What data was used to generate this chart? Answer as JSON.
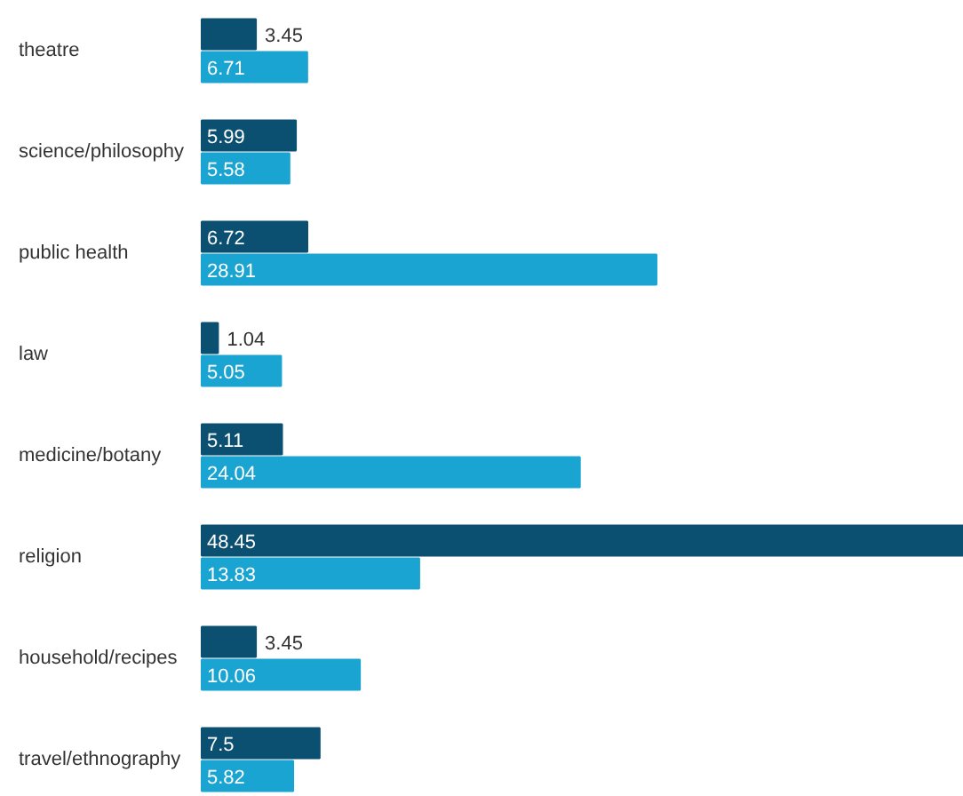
{
  "chart_data": {
    "type": "bar",
    "orientation": "horizontal",
    "data_labels": true,
    "grid": false,
    "categories": [
      "theatre",
      "science/philosophy",
      "public health",
      "law",
      "medicine/botany",
      "religion",
      "household/recipes",
      "travel/ethnography"
    ],
    "series": [
      {
        "color": "#0b4f71",
        "values": [
          3.45,
          5.99,
          6.72,
          1.04,
          5.11,
          48.45,
          3.45,
          7.5
        ]
      },
      {
        "color": "#1aa4d2",
        "values": [
          6.71,
          5.58,
          28.91,
          5.05,
          24.04,
          13.83,
          10.06,
          5.82
        ]
      }
    ]
  }
}
